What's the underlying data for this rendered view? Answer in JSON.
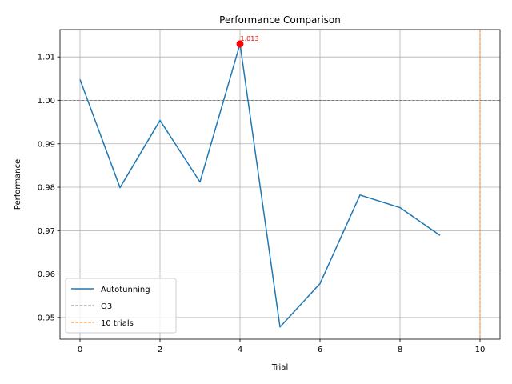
{
  "chart_data": {
    "type": "line",
    "title": "Performance Comparison",
    "xlabel": "Trial",
    "ylabel": "Performance",
    "xlim": [
      -0.5,
      10.5
    ],
    "ylim": [
      0.945,
      1.0163
    ],
    "xticks": [
      0,
      2,
      4,
      6,
      8,
      10
    ],
    "yticks": [
      0.95,
      0.96,
      0.97,
      0.98,
      0.99,
      1.0,
      1.01
    ],
    "ytick_labels": [
      "0.95",
      "0.96",
      "0.97",
      "0.98",
      "0.99",
      "1.00",
      "1.01"
    ],
    "grid": true,
    "legend_position": "lower-left",
    "series": [
      {
        "name": "Autotunning",
        "color": "#1f77b4",
        "style": "solid",
        "x": [
          0,
          1,
          2,
          3,
          4,
          5,
          6,
          7,
          8,
          9
        ],
        "values": [
          1.0048,
          0.9799,
          0.9954,
          0.9812,
          1.013,
          0.9478,
          0.9578,
          0.9782,
          0.9753,
          0.9689
        ]
      }
    ],
    "reference_lines": [
      {
        "name": "O3",
        "orientation": "horizontal",
        "value": 1.0,
        "color": "#808080",
        "style": "dashed"
      },
      {
        "name": "10 trials",
        "orientation": "vertical",
        "value": 10,
        "color": "#ff7f0e",
        "style": "dashed"
      }
    ],
    "highlight": {
      "x": 4,
      "y": 1.013,
      "label": "1.013",
      "color": "#ff0000"
    }
  }
}
